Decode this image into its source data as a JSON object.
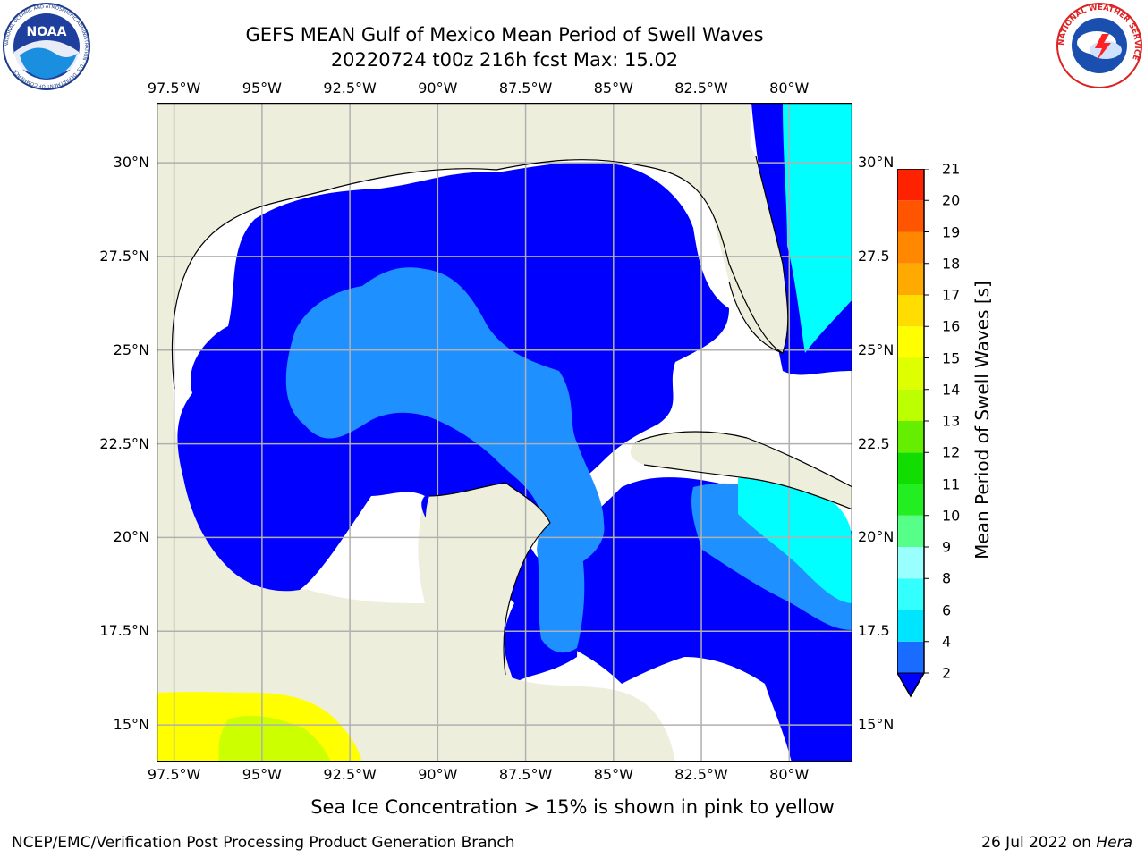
{
  "title_line1": "GEFS MEAN Gulf of Mexico Mean Period of Swell Waves",
  "title_line2": "20220724 t00z 216h fcst   Max: 15.02",
  "footer_note": "Sea Ice Concentration > 15% is shown in pink to yellow",
  "credit_left": "NCEP/EMC/Verification Post Processing Product Generation Branch",
  "credit_date": "26 Jul 2022 on ",
  "credit_host": "Hera",
  "logos": {
    "noaa": {
      "text": "NOAA",
      "ring_text": "NATIONAL OCEANIC AND ATMOSPHERIC ADMINISTRATION · U.S. DEPARTMENT OF COMMERCE"
    },
    "nws": {
      "ring_text": "NATIONAL WEATHER SERVICE"
    }
  },
  "map": {
    "lon_range": [
      -98,
      -78.2
    ],
    "lat_range": [
      14,
      31.6
    ],
    "lon_ticks": [
      {
        "value": -97.5,
        "label": "97.5°W"
      },
      {
        "value": -95,
        "label": "95°W"
      },
      {
        "value": -92.5,
        "label": "92.5°W"
      },
      {
        "value": -90,
        "label": "90°W"
      },
      {
        "value": -87.5,
        "label": "87.5°W"
      },
      {
        "value": -85,
        "label": "85°W"
      },
      {
        "value": -82.5,
        "label": "82.5°W"
      },
      {
        "value": -80,
        "label": "80°W"
      }
    ],
    "lat_ticks_left": [
      {
        "value": 30,
        "label": "30°N"
      },
      {
        "value": 27.5,
        "label": "27.5°N"
      },
      {
        "value": 25,
        "label": "25°N"
      },
      {
        "value": 22.5,
        "label": "22.5°N"
      },
      {
        "value": 20,
        "label": "20°N"
      },
      {
        "value": 17.5,
        "label": "17.5°N"
      },
      {
        "value": 15,
        "label": "15°N"
      }
    ],
    "lat_ticks_right": [
      {
        "value": 30,
        "label": "30°N"
      },
      {
        "value": 27.5,
        "label": "27.5"
      },
      {
        "value": 25,
        "label": "25°N"
      },
      {
        "value": 22.5,
        "label": "22.5"
      },
      {
        "value": 20,
        "label": "20°N"
      },
      {
        "value": 17.5,
        "label": "17.5"
      },
      {
        "value": 15,
        "label": "15°N"
      }
    ],
    "colors": {
      "land": "#eeeedd",
      "grid": "#b0b0b0",
      "coast": "#000000",
      "no_data": "#ffffff",
      "period_2_4": "#0000ff",
      "period_4_6": "#1e90ff",
      "period_6_8": "#00ffff",
      "ice_high": "#ccff00",
      "ice_low": "#ffff00"
    }
  },
  "colorbar": {
    "label": "Mean Period of Swell Waves [s]",
    "levels": [
      2,
      4,
      6,
      8,
      9,
      10,
      11,
      12,
      13,
      14,
      15,
      16,
      17,
      18,
      19,
      20,
      21
    ],
    "colors": [
      "#1a6bff",
      "#00e5ff",
      "#33ffff",
      "#99ffff",
      "#55ff88",
      "#22ee22",
      "#11dd00",
      "#66ee00",
      "#bbff00",
      "#ddff00",
      "#ffff00",
      "#ffdd00",
      "#ffaa00",
      "#ff8800",
      "#ff5500",
      "#ff2200",
      "#ff0000"
    ],
    "extend_color": "#0000ff"
  }
}
